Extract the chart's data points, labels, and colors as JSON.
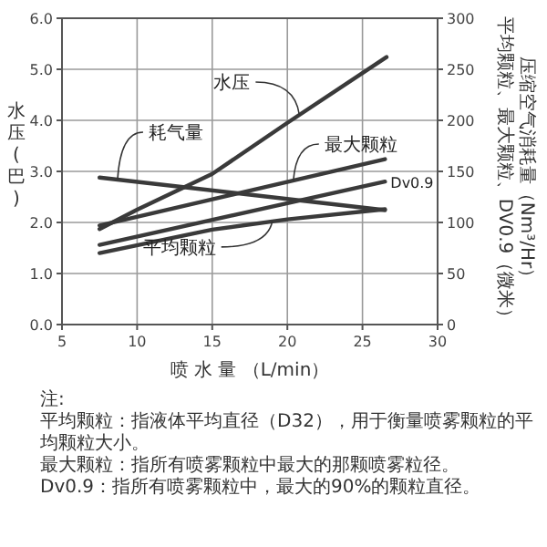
{
  "chart_data": {
    "type": "line",
    "xlabel": "喷 水 量 （L/min）",
    "ylabel": "水压(巴)",
    "y2label": "压缩空气消耗量（Nm³/Hr）平均颗粒、最大颗粒、DV0.9（微米）",
    "xlim": [
      5,
      30
    ],
    "xticks": [
      5,
      10,
      15,
      20,
      25,
      30
    ],
    "ylim": [
      0,
      6
    ],
    "yticks": [
      {
        "value": 0,
        "label": "0.0"
      },
      {
        "value": 1,
        "label": "1.0"
      },
      {
        "value": 2,
        "label": "2.0"
      },
      {
        "value": 3,
        "label": "3.0"
      },
      {
        "value": 4,
        "label": "4.0"
      },
      {
        "value": 5,
        "label": "5.0"
      },
      {
        "value": 6,
        "label": "6.0"
      }
    ],
    "y2lim": [
      0,
      300
    ],
    "y2ticks": [
      0,
      50,
      100,
      150,
      200,
      250,
      300
    ],
    "grid": true,
    "marker": "none",
    "line_style": "solid",
    "series": [
      {
        "name": "水压",
        "color": "#3a3a3a",
        "x": [
          7.5,
          10,
          15,
          20,
          26.6
        ],
        "values": [
          1.87,
          2.25,
          2.95,
          3.95,
          5.24
        ]
      },
      {
        "name": "耗气量",
        "color": "#3a3a3a",
        "axis": "y2",
        "x": [
          7.5,
          26.5
        ],
        "values": [
          144,
          112
        ]
      },
      {
        "name": "最大颗粒",
        "color": "#3a3a3a",
        "axis": "y2",
        "x": [
          7.5,
          26.5
        ],
        "values": [
          97,
          162
        ]
      },
      {
        "name": "Dv0.9",
        "color": "#3a3a3a",
        "axis": "y2",
        "x": [
          7.5,
          26.5
        ],
        "values": [
          78,
          140
        ]
      },
      {
        "name": "平均颗粒",
        "color": "#3a3a3a",
        "axis": "y2",
        "x": [
          7.5,
          15,
          20,
          26.5
        ],
        "values": [
          70,
          93,
          103,
          113
        ]
      }
    ],
    "annotations": [
      "注:",
      "平均颗粒：指液体平均直径（D32），用于衡量喷雾颗粒的平均颗粒大小。",
      "最大颗粒：指所有喷雾颗粒中最大的那颗喷雾粒径。",
      "Dv0.9：指所有喷雾颗粒中，最大的90%的颗粒直径。"
    ]
  }
}
